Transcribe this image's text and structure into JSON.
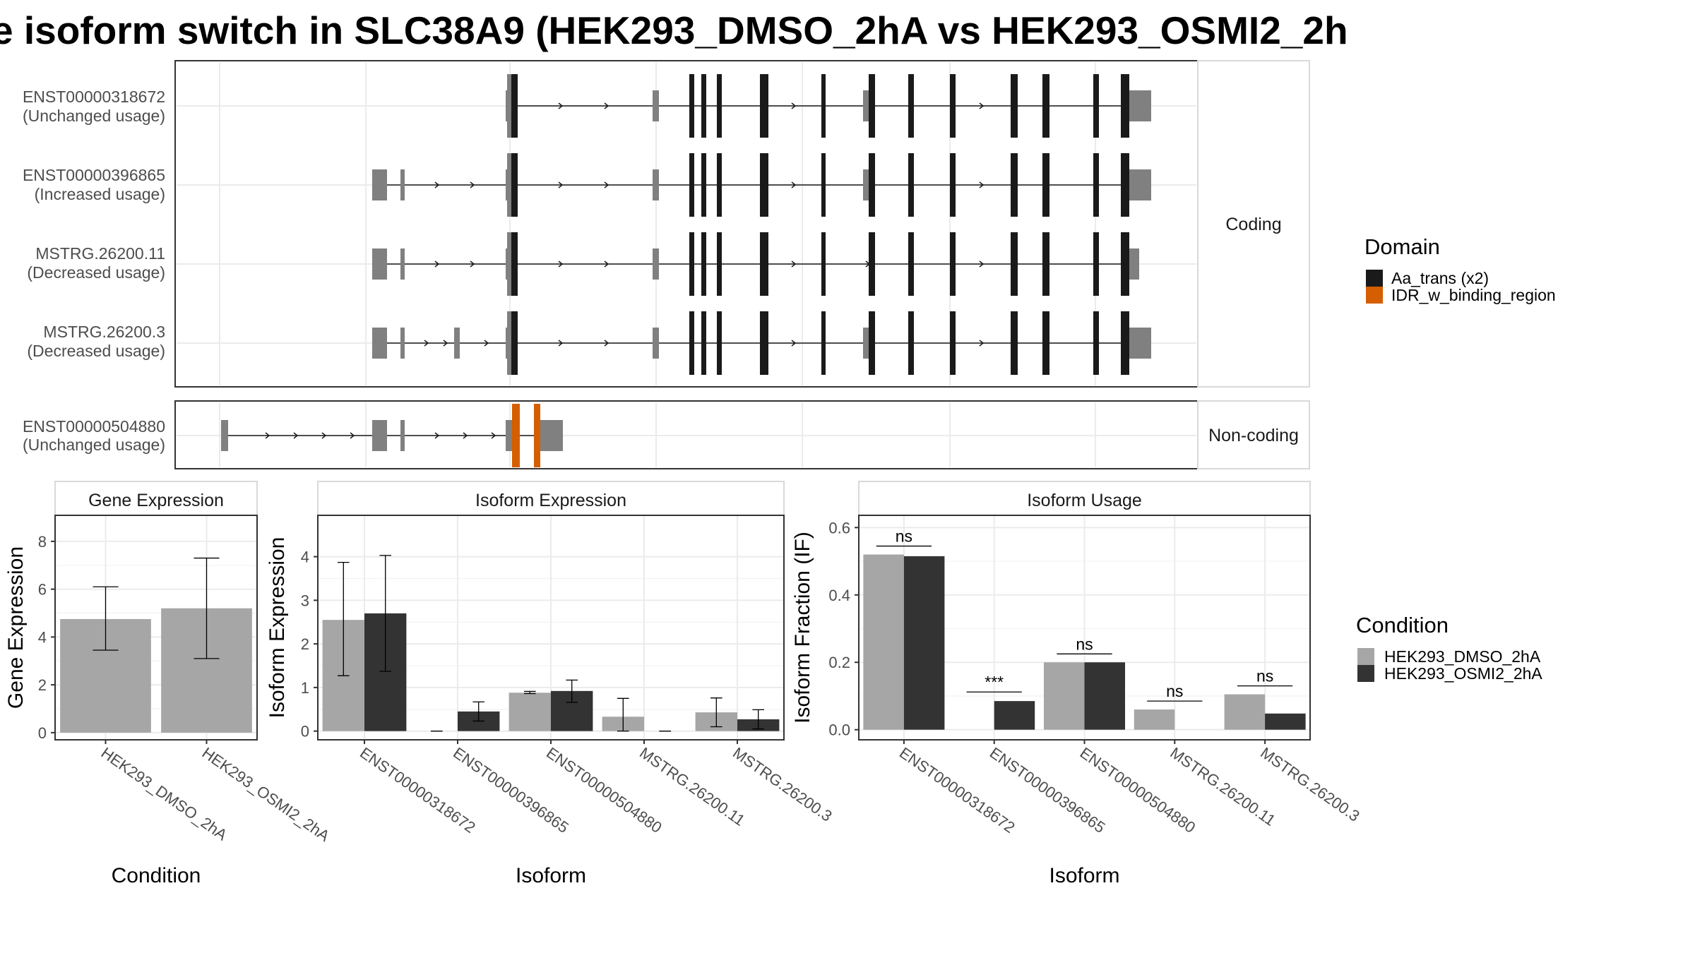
{
  "title": "e isoform switch in SLC38A9 (HEK293_DMSO_2hA vs HEK293_OSMI2_2h",
  "colors": {
    "dmso": "#a6a6a6",
    "osmi2": "#333333",
    "exon_utr": "#808080",
    "domain_aa_trans": "#1a1a1a",
    "domain_idr": "#d55e00"
  },
  "structure": {
    "coding_label": "Coding",
    "noncoding_label": "Non-coding",
    "coding_transcripts": [
      {
        "id": "ENST00000318672",
        "usage": "(Unchanged usage)"
      },
      {
        "id": "ENST00000396865",
        "usage": "(Increased usage)"
      },
      {
        "id": "MSTRG.26200.11",
        "usage": "(Decreased usage)"
      },
      {
        "id": "MSTRG.26200.3",
        "usage": "(Decreased usage)"
      }
    ],
    "noncoding_transcripts": [
      {
        "id": "ENST00000504880",
        "usage": "(Unchanged usage)"
      }
    ]
  },
  "legend_domain": {
    "title": "Domain",
    "items": [
      {
        "label": "Aa_trans (x2)",
        "color": "#1a1a1a"
      },
      {
        "label": "IDR_w_binding_region",
        "color": "#d55e00"
      }
    ]
  },
  "legend_condition": {
    "title": "Condition",
    "items": [
      {
        "label": "HEK293_DMSO_2hA",
        "color": "#a6a6a6"
      },
      {
        "label": "HEK293_OSMI2_2hA",
        "color": "#333333"
      }
    ]
  },
  "chart_data": [
    {
      "type": "bar",
      "title": "Gene Expression",
      "xlabel": "Condition",
      "ylabel": "Gene Expression",
      "categories": [
        "HEK293_DMSO_2hA",
        "HEK293_OSMI2_2hA"
      ],
      "values": [
        4.75,
        5.2
      ],
      "error_low": [
        3.45,
        3.1
      ],
      "error_high": [
        6.1,
        7.3
      ],
      "ylim": [
        -0.3,
        9.0
      ],
      "yticks": [
        0,
        2,
        4,
        6,
        8
      ],
      "grid": true
    },
    {
      "type": "bar",
      "title": "Isoform Expression",
      "xlabel": "Isoform",
      "ylabel": "Isoform Expression",
      "categories": [
        "ENST00000318672",
        "ENST00000396865",
        "ENST00000504880",
        "MSTRG.26200.11",
        "MSTRG.26200.3"
      ],
      "series": [
        {
          "name": "HEK293_DMSO_2hA",
          "values": [
            2.55,
            0.0,
            0.88,
            0.33,
            0.43
          ],
          "error_low": [
            1.27,
            0.0,
            0.86,
            0.0,
            0.1
          ],
          "error_high": [
            3.87,
            0.0,
            0.91,
            0.75,
            0.76
          ]
        },
        {
          "name": "HEK293_OSMI2_2hA",
          "values": [
            2.7,
            0.45,
            0.92,
            0.0,
            0.27
          ],
          "error_low": [
            1.37,
            0.23,
            0.66,
            0.0,
            0.05
          ],
          "error_high": [
            4.03,
            0.67,
            1.17,
            0.0,
            0.49
          ]
        }
      ],
      "ylim": [
        -0.2,
        4.9
      ],
      "yticks": [
        0,
        1,
        2,
        3,
        4
      ],
      "grid": true
    },
    {
      "type": "bar",
      "title": "Isoform Usage",
      "xlabel": "Isoform",
      "ylabel": "Isoform Fraction (IF)",
      "categories": [
        "ENST00000318672",
        "ENST00000396865",
        "ENST00000504880",
        "MSTRG.26200.11",
        "MSTRG.26200.3"
      ],
      "series": [
        {
          "name": "HEK293_DMSO_2hA",
          "values": [
            0.52,
            0.0,
            0.2,
            0.06,
            0.105
          ]
        },
        {
          "name": "HEK293_OSMI2_2hA",
          "values": [
            0.515,
            0.085,
            0.2,
            0.0,
            0.048
          ]
        }
      ],
      "significance": [
        {
          "label": "ns",
          "y": 0.545
        },
        {
          "label": "***",
          "y": 0.112
        },
        {
          "label": "ns",
          "y": 0.225
        },
        {
          "label": "ns",
          "y": 0.085
        },
        {
          "label": "ns",
          "y": 0.13
        }
      ],
      "ylim": [
        -0.03,
        0.63
      ],
      "yticks": [
        0.0,
        0.2,
        0.4,
        0.6
      ],
      "ytick_labels": [
        "0.0",
        "0.2",
        "0.4",
        "0.6"
      ],
      "grid": true
    }
  ]
}
